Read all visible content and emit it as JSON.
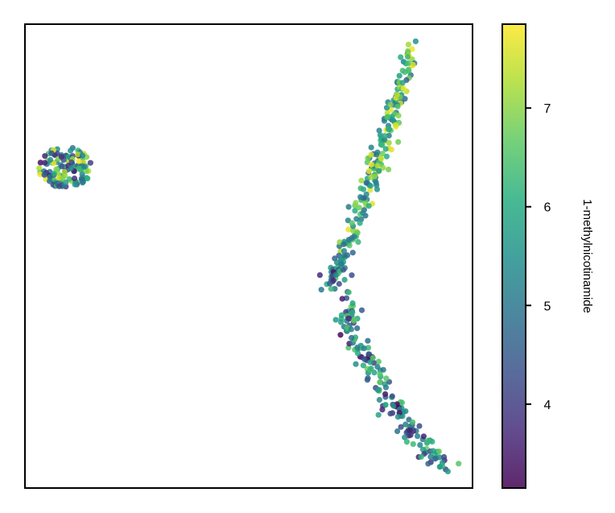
{
  "chart_data": {
    "type": "scatter",
    "title": "",
    "xlabel": "",
    "ylabel": "",
    "axes_ticks_visible": false,
    "grid": false,
    "colormap": "viridis",
    "marker_alpha": 0.85,
    "colorbar": {
      "label": "1-methylnicotinamide",
      "range": [
        3.15,
        7.85
      ],
      "ticks": [
        4,
        5,
        6,
        7
      ],
      "tick_labels": [
        "4",
        "5",
        "6",
        "7"
      ],
      "placement": "right"
    },
    "data_range": {
      "x": [
        0,
        100
      ],
      "y": [
        0,
        100
      ]
    },
    "clusters": [
      {
        "description": "small round cluster, left",
        "shape": "blob",
        "center": [
          9,
          69
        ],
        "radius": [
          6,
          4.5
        ],
        "count": 120,
        "value_range": [
          3.4,
          7.8
        ]
      },
      {
        "description": "arc, upper branch",
        "shape": "path",
        "path": [
          [
            86.5,
            95
          ],
          [
            84,
            86
          ],
          [
            80.5,
            75
          ],
          [
            77,
            66
          ],
          [
            73.5,
            56
          ],
          [
            70,
            47.5
          ],
          [
            69,
            46
          ]
        ],
        "spread": 1.1,
        "count": 210,
        "value_range": [
          4.6,
          7.8
        ]
      },
      {
        "description": "arc, lower branch",
        "shape": "path",
        "path": [
          [
            69,
            46
          ],
          [
            71,
            40
          ],
          [
            74,
            32
          ],
          [
            77,
            26
          ],
          [
            81,
            20
          ],
          [
            85,
            14
          ],
          [
            89,
            9
          ],
          [
            94,
            5
          ]
        ],
        "spread": 1.4,
        "count": 190,
        "value_range": [
          3.2,
          6.8
        ]
      }
    ]
  }
}
